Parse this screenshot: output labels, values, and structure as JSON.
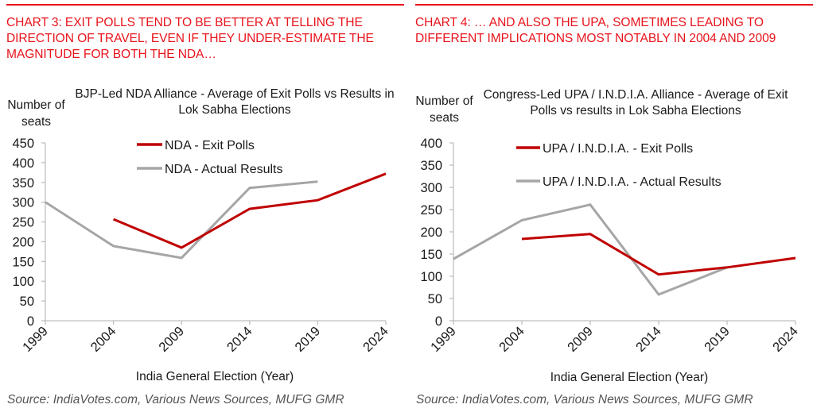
{
  "colors": {
    "accent": "#e8141c",
    "exit_polls": "#c00000",
    "actual_results": "#a6a6a6",
    "axis": "#bfbfbf",
    "text": "#1a1a1a",
    "source": "#555555"
  },
  "panels": [
    {
      "headline": "CHART 3: EXIT POLLS TEND TO BE BETTER AT TELLING THE DIRECTION OF TRAVEL, EVEN IF THEY UNDER-ESTIMATE THE MAGNITUDE FOR BOTH THE NDA…",
      "source": "Source: IndiaVotes.com, Various News Sources, MUFG GMR"
    },
    {
      "headline": "CHART 4: … AND ALSO THE UPA, SOMETIMES LEADING TO DIFFERENT IMPLICATIONS MOST NOTABLY IN 2004 AND 2009",
      "source": "Source: IndiaVotes.com, Various News Sources, MUFG GMR"
    }
  ],
  "chart_data": [
    {
      "type": "line",
      "title": "BJP-Led NDA Alliance - Average of Exit Polls vs Results in Lok Sabha Elections",
      "xlabel": "India General Election (Year)",
      "ylabel": "Number of seats",
      "categories": [
        "1999",
        "2004",
        "2009",
        "2014",
        "2019",
        "2024"
      ],
      "ylim": [
        0,
        450
      ],
      "yticks": [
        0,
        50,
        100,
        150,
        200,
        250,
        300,
        350,
        400,
        450
      ],
      "grid": false,
      "legend_position": "top-center",
      "series": [
        {
          "name": "NDA - Exit Polls",
          "color": "#c00000",
          "values": [
            null,
            257,
            185,
            283,
            305,
            372
          ]
        },
        {
          "name": "NDA - Actual Results",
          "color": "#a6a6a6",
          "values": [
            300,
            189,
            159,
            336,
            352,
            null
          ]
        }
      ]
    },
    {
      "type": "line",
      "title": "Congress-Led UPA / I.N.D.I.A. Alliance - Average of Exit Polls vs results in Lok Sabha Elections",
      "xlabel": "India General Election (Year)",
      "ylabel": "Number of seats",
      "categories": [
        "1999",
        "2004",
        "2009",
        "2014",
        "2019",
        "2024"
      ],
      "ylim": [
        0,
        400
      ],
      "yticks": [
        0,
        50,
        100,
        150,
        200,
        250,
        300,
        350,
        400
      ],
      "grid": false,
      "legend_position": "top-center",
      "series": [
        {
          "name": "UPA / I.N.D.I.A. - Exit Polls",
          "color": "#c00000",
          "values": [
            null,
            184,
            195,
            104,
            120,
            141
          ]
        },
        {
          "name": "UPA / I.N.D.I.A. - Actual Results",
          "color": "#a6a6a6",
          "values": [
            139,
            226,
            261,
            59,
            120,
            null
          ]
        }
      ]
    }
  ]
}
